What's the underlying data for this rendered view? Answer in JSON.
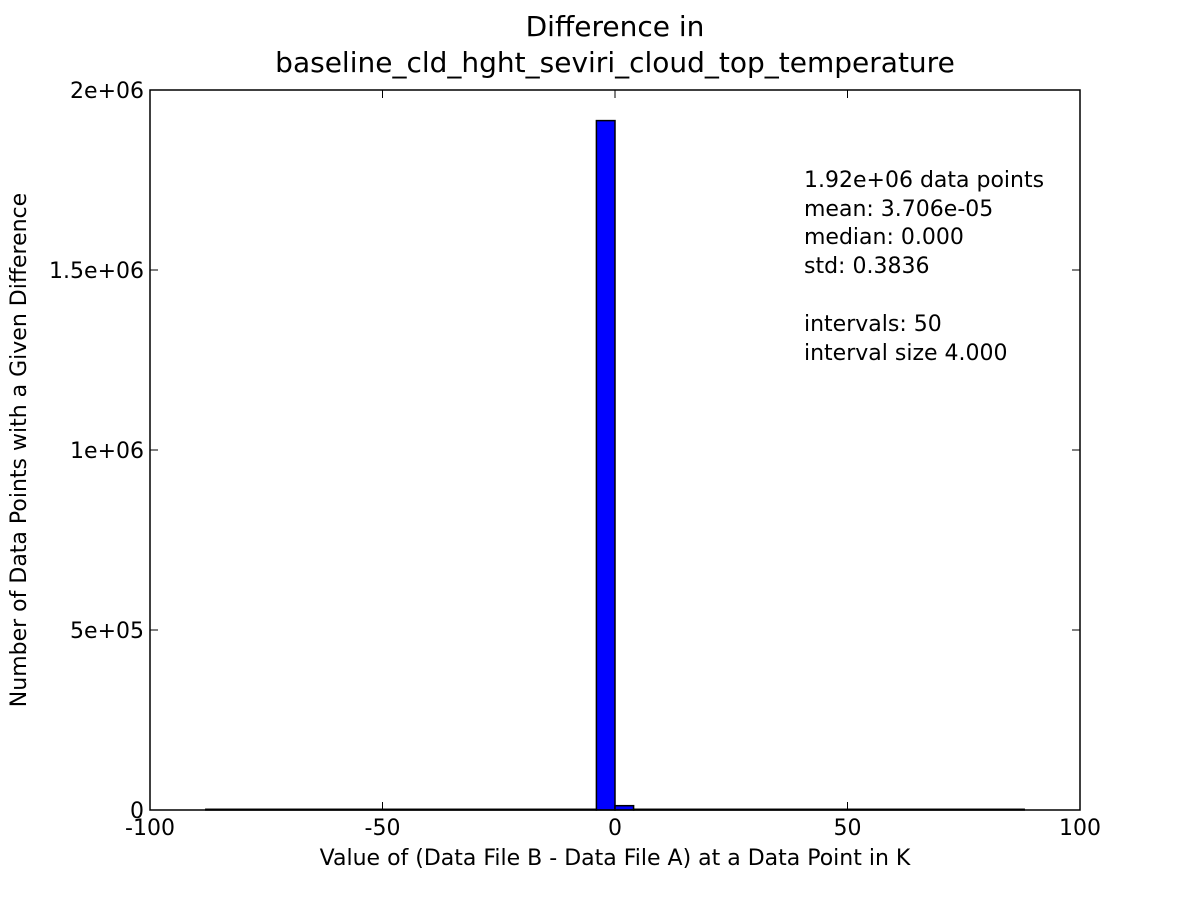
{
  "chart_data": {
    "type": "bar",
    "title_line1": "Difference in",
    "title_line2": "baseline_cld_hght_seviri_cloud_top_temperature",
    "xlabel": "Value of (Data File B - Data File A) at a Data Point in K",
    "ylabel": "Number of Data Points with a Given Difference",
    "xlim": [
      -100,
      100
    ],
    "ylim": [
      0,
      2000000
    ],
    "xticks": [
      {
        "value": -100,
        "label": "-100"
      },
      {
        "value": -50,
        "label": "-50"
      },
      {
        "value": 0,
        "label": "0"
      },
      {
        "value": 50,
        "label": "50"
      },
      {
        "value": 100,
        "label": "100"
      }
    ],
    "yticks": [
      {
        "value": 0,
        "label": "0"
      },
      {
        "value": 500000,
        "label": "5e+05"
      },
      {
        "value": 1000000,
        "label": "1e+06"
      },
      {
        "value": 1500000,
        "label": "1.5e+06"
      },
      {
        "value": 2000000,
        "label": "2e+06"
      }
    ],
    "bar_color": "#0000ff",
    "bars": [
      {
        "x0": -88,
        "x1": -4,
        "count": 2000
      },
      {
        "x0": -4,
        "x1": 0,
        "count": 1915000
      },
      {
        "x0": 0,
        "x1": 4,
        "count": 12000
      },
      {
        "x0": 4,
        "x1": 88,
        "count": 2000
      }
    ],
    "grid": false,
    "stats": {
      "points": "1.92e+06 data points",
      "mean": "mean: 3.706e-05",
      "median": "median: 0.000",
      "std": "std: 0.3836",
      "intervals": "intervals: 50",
      "interval_size": "interval size 4.000"
    }
  }
}
